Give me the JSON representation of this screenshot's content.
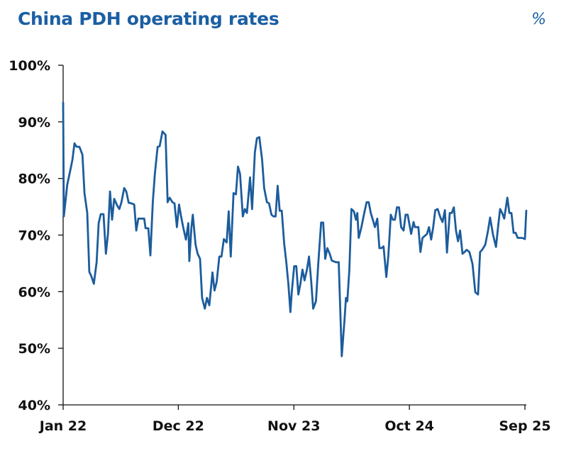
{
  "chart_data": {
    "type": "line",
    "title": "China PDH operating rates",
    "unit_label": "%",
    "xlabel": "",
    "ylabel": "",
    "ylim": [
      40,
      100
    ],
    "xlim": [
      "2022-01-01",
      "2025-09-01"
    ],
    "grid": false,
    "legend": "none",
    "y_ticks": [
      40,
      50,
      60,
      70,
      80,
      90,
      100
    ],
    "y_tick_labels": [
      "40%",
      "50%",
      "60%",
      "70%",
      "80%",
      "90%",
      "100%"
    ],
    "x_ticks": [
      "2022-01-01",
      "2022-12-01",
      "2023-11-01",
      "2024-10-01",
      "2025-09-01"
    ],
    "x_tick_labels": [
      "Jan 22",
      "Dec 22",
      "Nov 23",
      "Oct 24",
      "Sep 25"
    ],
    "color": "#1c5c9c",
    "series": [
      {
        "points": [
          [
            "2022-01-01",
            93.4
          ],
          [
            "2022-01-03",
            73.3
          ],
          [
            "2022-01-13",
            78.9
          ],
          [
            "2022-01-22",
            81.5
          ],
          [
            "2022-01-28",
            83.3
          ],
          [
            "2022-02-03",
            86.2
          ],
          [
            "2022-02-09",
            85.6
          ],
          [
            "2022-02-17",
            85.6
          ],
          [
            "2022-02-26",
            84.2
          ],
          [
            "2022-03-04",
            77.4
          ],
          [
            "2022-03-12",
            73.9
          ],
          [
            "2022-03-18",
            63.5
          ],
          [
            "2022-03-24",
            62.7
          ],
          [
            "2022-03-31",
            61.4
          ],
          [
            "2022-04-08",
            65.2
          ],
          [
            "2022-04-14",
            72.1
          ],
          [
            "2022-04-20",
            73.7
          ],
          [
            "2022-04-28",
            73.7
          ],
          [
            "2022-05-05",
            66.7
          ],
          [
            "2022-05-11",
            70.2
          ],
          [
            "2022-05-17",
            77.7
          ],
          [
            "2022-05-23",
            72.7
          ],
          [
            "2022-05-29",
            76.4
          ],
          [
            "2022-06-07",
            75.2
          ],
          [
            "2022-06-13",
            74.6
          ],
          [
            "2022-06-19",
            75.8
          ],
          [
            "2022-06-27",
            78.3
          ],
          [
            "2022-07-03",
            77.7
          ],
          [
            "2022-07-10",
            75.7
          ],
          [
            "2022-07-18",
            75.6
          ],
          [
            "2022-07-26",
            75.4
          ],
          [
            "2022-08-01",
            70.8
          ],
          [
            "2022-08-07",
            72.9
          ],
          [
            "2022-08-24",
            72.9
          ],
          [
            "2022-08-28",
            71.2
          ],
          [
            "2022-09-05",
            71.2
          ],
          [
            "2022-09-11",
            66.4
          ],
          [
            "2022-09-18",
            75.8
          ],
          [
            "2022-09-24",
            80.8
          ],
          [
            "2022-10-02",
            85.6
          ],
          [
            "2022-10-08",
            85.7
          ],
          [
            "2022-10-16",
            88.3
          ],
          [
            "2022-10-25",
            87.7
          ],
          [
            "2022-10-31",
            75.8
          ],
          [
            "2022-11-06",
            76.6
          ],
          [
            "2022-11-14",
            75.8
          ],
          [
            "2022-11-20",
            75.6
          ],
          [
            "2022-11-27",
            71.4
          ],
          [
            "2022-12-03",
            75.4
          ],
          [
            "2022-12-09",
            73.3
          ],
          [
            "2022-12-15",
            71.4
          ],
          [
            "2022-12-23",
            69.2
          ],
          [
            "2022-12-30",
            72.1
          ],
          [
            "2023-01-02",
            65.4
          ],
          [
            "2023-01-08",
            71.4
          ],
          [
            "2023-01-12",
            73.6
          ],
          [
            "2023-01-20",
            68.3
          ],
          [
            "2023-01-26",
            66.7
          ],
          [
            "2023-02-02",
            65.8
          ],
          [
            "2023-02-08",
            58.9
          ],
          [
            "2023-02-16",
            57.0
          ],
          [
            "2023-02-22",
            58.9
          ],
          [
            "2023-03-01",
            57.6
          ],
          [
            "2023-03-10",
            63.4
          ],
          [
            "2023-03-16",
            60.2
          ],
          [
            "2023-03-22",
            61.7
          ],
          [
            "2023-03-30",
            66.2
          ],
          [
            "2023-04-05",
            66.2
          ],
          [
            "2023-04-12",
            69.3
          ],
          [
            "2023-04-20",
            68.7
          ],
          [
            "2023-04-26",
            74.2
          ],
          [
            "2023-05-02",
            66.2
          ],
          [
            "2023-05-10",
            77.4
          ],
          [
            "2023-05-17",
            77.2
          ],
          [
            "2023-05-23",
            82.1
          ],
          [
            "2023-05-29",
            80.8
          ],
          [
            "2023-06-06",
            73.3
          ],
          [
            "2023-06-12",
            74.6
          ],
          [
            "2023-06-18",
            73.9
          ],
          [
            "2023-06-27",
            80.2
          ],
          [
            "2023-07-03",
            74.6
          ],
          [
            "2023-07-11",
            84.6
          ],
          [
            "2023-07-17",
            87.1
          ],
          [
            "2023-07-24",
            87.3
          ],
          [
            "2023-08-01",
            83.3
          ],
          [
            "2023-08-07",
            78.3
          ],
          [
            "2023-08-15",
            75.8
          ],
          [
            "2023-08-21",
            75.6
          ],
          [
            "2023-08-28",
            73.6
          ],
          [
            "2023-09-03",
            73.3
          ],
          [
            "2023-09-09",
            73.3
          ],
          [
            "2023-09-15",
            78.7
          ],
          [
            "2023-09-21",
            74.3
          ],
          [
            "2023-09-27",
            74.3
          ],
          [
            "2023-10-04",
            68.5
          ],
          [
            "2023-10-10",
            65.2
          ],
          [
            "2023-10-16",
            61.4
          ],
          [
            "2023-10-22",
            56.4
          ],
          [
            "2023-10-26",
            59.9
          ],
          [
            "2023-11-02",
            64.5
          ],
          [
            "2023-11-08",
            64.5
          ],
          [
            "2023-11-14",
            59.5
          ],
          [
            "2023-11-20",
            61.4
          ],
          [
            "2023-11-26",
            63.9
          ],
          [
            "2023-12-02",
            62.0
          ],
          [
            "2023-12-09",
            63.9
          ],
          [
            "2023-12-15",
            66.2
          ],
          [
            "2023-12-21",
            62.0
          ],
          [
            "2023-12-27",
            57.0
          ],
          [
            "2024-01-04",
            58.3
          ],
          [
            "2024-01-11",
            65.2
          ],
          [
            "2024-01-19",
            72.2
          ],
          [
            "2024-01-25",
            72.2
          ],
          [
            "2024-01-31",
            65.8
          ],
          [
            "2024-02-06",
            67.7
          ],
          [
            "2024-02-13",
            66.7
          ],
          [
            "2024-02-19",
            65.5
          ],
          [
            "2024-03-02",
            65.2
          ],
          [
            "2024-03-10",
            65.2
          ],
          [
            "2024-03-19",
            48.6
          ],
          [
            "2024-03-27",
            55.1
          ],
          [
            "2024-03-31",
            58.9
          ],
          [
            "2024-04-04",
            58.3
          ],
          [
            "2024-04-10",
            63.9
          ],
          [
            "2024-04-16",
            74.6
          ],
          [
            "2024-04-23",
            74.2
          ],
          [
            "2024-04-29",
            72.7
          ],
          [
            "2024-05-03",
            73.9
          ],
          [
            "2024-05-07",
            69.5
          ],
          [
            "2024-05-15",
            71.4
          ],
          [
            "2024-05-21",
            73.3
          ],
          [
            "2024-05-30",
            75.8
          ],
          [
            "2024-06-05",
            75.8
          ],
          [
            "2024-06-11",
            73.9
          ],
          [
            "2024-06-17",
            72.7
          ],
          [
            "2024-06-23",
            71.4
          ],
          [
            "2024-06-30",
            72.9
          ],
          [
            "2024-07-06",
            67.7
          ],
          [
            "2024-07-12",
            67.7
          ],
          [
            "2024-07-18",
            68.0
          ],
          [
            "2024-07-26",
            62.6
          ],
          [
            "2024-08-01",
            66.4
          ],
          [
            "2024-08-08",
            73.6
          ],
          [
            "2024-08-14",
            72.7
          ],
          [
            "2024-08-20",
            72.7
          ],
          [
            "2024-08-26",
            74.9
          ],
          [
            "2024-09-01",
            74.9
          ],
          [
            "2024-09-07",
            71.4
          ],
          [
            "2024-09-14",
            70.8
          ],
          [
            "2024-09-20",
            73.6
          ],
          [
            "2024-09-26",
            73.6
          ],
          [
            "2024-10-06",
            70.2
          ],
          [
            "2024-10-13",
            72.3
          ],
          [
            "2024-10-17",
            71.4
          ],
          [
            "2024-10-27",
            71.4
          ],
          [
            "2024-11-02",
            67.0
          ],
          [
            "2024-11-08",
            69.5
          ],
          [
            "2024-11-21",
            70.2
          ],
          [
            "2024-11-27",
            71.4
          ],
          [
            "2024-12-03",
            69.2
          ],
          [
            "2024-12-09",
            71.4
          ],
          [
            "2024-12-15",
            74.4
          ],
          [
            "2024-12-22",
            74.6
          ],
          [
            "2024-12-30",
            73.1
          ],
          [
            "2025-01-05",
            72.3
          ],
          [
            "2025-01-12",
            74.4
          ],
          [
            "2025-01-18",
            66.9
          ],
          [
            "2025-01-26",
            73.9
          ],
          [
            "2025-02-01",
            73.9
          ],
          [
            "2025-02-07",
            74.9
          ],
          [
            "2025-02-13",
            70.8
          ],
          [
            "2025-02-19",
            68.9
          ],
          [
            "2025-02-25",
            70.8
          ],
          [
            "2025-03-04",
            66.7
          ],
          [
            "2025-03-10",
            67.0
          ],
          [
            "2025-03-16",
            67.4
          ],
          [
            "2025-03-24",
            67.0
          ],
          [
            "2025-04-02",
            64.9
          ],
          [
            "2025-04-10",
            59.9
          ],
          [
            "2025-04-18",
            59.5
          ],
          [
            "2025-04-24",
            67.0
          ],
          [
            "2025-04-30",
            67.4
          ],
          [
            "2025-05-09",
            68.3
          ],
          [
            "2025-05-17",
            70.8
          ],
          [
            "2025-05-23",
            73.1
          ],
          [
            "2025-05-31",
            70.2
          ],
          [
            "2025-06-09",
            67.9
          ],
          [
            "2025-06-15",
            71.4
          ],
          [
            "2025-06-21",
            74.6
          ],
          [
            "2025-06-27",
            73.9
          ],
          [
            "2025-07-03",
            72.9
          ],
          [
            "2025-07-12",
            76.6
          ],
          [
            "2025-07-18",
            73.9
          ],
          [
            "2025-07-24",
            73.9
          ],
          [
            "2025-07-30",
            70.4
          ],
          [
            "2025-08-05",
            70.4
          ],
          [
            "2025-08-11",
            69.5
          ],
          [
            "2025-08-24",
            69.5
          ],
          [
            "2025-09-01",
            69.3
          ],
          [
            "2025-09-05",
            74.3
          ]
        ]
      }
    ]
  }
}
